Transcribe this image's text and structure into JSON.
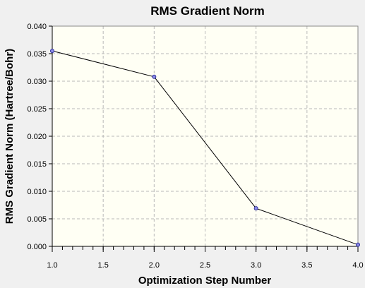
{
  "chart_data": {
    "type": "line",
    "title": "RMS Gradient Norm",
    "xlabel": "Optimization Step Number",
    "ylabel": "RMS Gradient Norm (Hartree/Bohr)",
    "xlim": [
      1.0,
      4.0
    ],
    "ylim": [
      0.0,
      0.04
    ],
    "x_ticks": [
      "1.0",
      "1.5",
      "2.0",
      "2.5",
      "3.0",
      "3.5",
      "4.0"
    ],
    "y_ticks": [
      "0.000",
      "0.005",
      "0.010",
      "0.015",
      "0.020",
      "0.025",
      "0.030",
      "0.035",
      "0.040"
    ],
    "grid": true,
    "series": [
      {
        "x": [
          1,
          2,
          3,
          4
        ],
        "y": [
          0.0355,
          0.0308,
          0.0069,
          0.0003
        ]
      }
    ],
    "colors": {
      "page_background": "#f0f0f0",
      "plot_background": "#fffff4",
      "line": "#000000",
      "marker_fill": "#8c8ce6",
      "marker_stroke": "#2a2a9a",
      "grid": "#b9b9b9"
    }
  }
}
